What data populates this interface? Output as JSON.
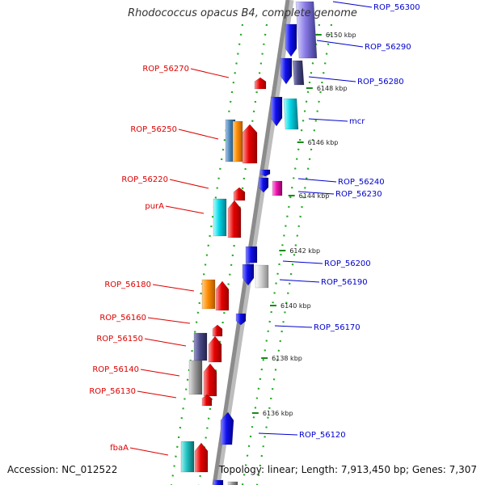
{
  "title": "Rhodococcus opacus B4, complete genome",
  "accession": "Accession: NC_012522",
  "summary": "Topology: linear; Length: 7,913,450 bp; Genes: 7,307",
  "colors": {
    "reverse_label": "#dd0000",
    "forward_label": "#0000cc",
    "backbone": "#8c8c8c",
    "tick": "#1a8a1a"
  },
  "reverse_labels": [
    "ROP_56270",
    "ROP_56250",
    "ROP_56220",
    "purA",
    "ROP_56180",
    "ROP_56160",
    "ROP_56150",
    "ROP_56140",
    "ROP_56130",
    "fbaA"
  ],
  "forward_labels": [
    "ROP_56300",
    "ROP_56290",
    "ROP_56280",
    "mcr",
    "ROP_56240",
    "ROP_56230",
    "ROP_56200",
    "ROP_56190",
    "ROP_56170",
    "ROP_56120"
  ],
  "tick_labels": [
    "6150 kbp",
    "6148 kbp",
    "6146 kbp",
    "6144 kbp",
    "6142 kbp",
    "6140 kbp",
    "6138 kbp",
    "6136 kbp"
  ]
}
